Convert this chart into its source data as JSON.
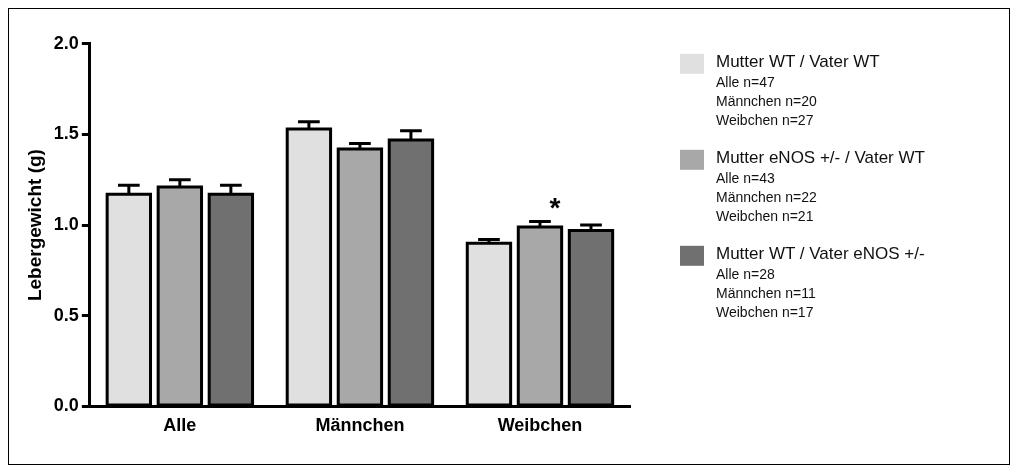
{
  "chart_data": {
    "type": "bar",
    "ylabel": "Lebergewicht (g)",
    "categories": [
      "Alle",
      "Männchen",
      "Weibchen"
    ],
    "series": [
      {
        "name": "Mutter WT / Vater WT\nAlle n=47\nMännchen n=20\nWeibchen n=27",
        "color": "#e0e0e0",
        "values": [
          1.17,
          1.53,
          0.9
        ],
        "errors": [
          0.05,
          0.04,
          0.02
        ]
      },
      {
        "name": "Mutter eNOS +/- / Vater WT\nAlle n=43\nMännchen n=22\nWeibchen n=21",
        "color": "#a8a8a8",
        "values": [
          1.21,
          1.42,
          0.99
        ],
        "errors": [
          0.04,
          0.03,
          0.03
        ]
      },
      {
        "name": "Mutter WT / Vater eNOS +/-\nAlle n=28\nMännchen n=11\nWeibchen n=17",
        "color": "#707070",
        "values": [
          1.17,
          1.47,
          0.97
        ],
        "errors": [
          0.05,
          0.05,
          0.03
        ]
      }
    ],
    "ylim": [
      0,
      2
    ],
    "yticks": [
      {
        "value": 0,
        "label": "0.0"
      },
      {
        "value": 0.5,
        "label": "0.5"
      },
      {
        "value": 1,
        "label": "1.0"
      },
      {
        "value": 1.5,
        "label": "1.5"
      },
      {
        "value": 2,
        "label": "2.0"
      }
    ],
    "annotations": [
      {
        "text": "*",
        "x": "Weibchen",
        "y": 0.99
      }
    ],
    "legend": "right",
    "grid": false
  }
}
